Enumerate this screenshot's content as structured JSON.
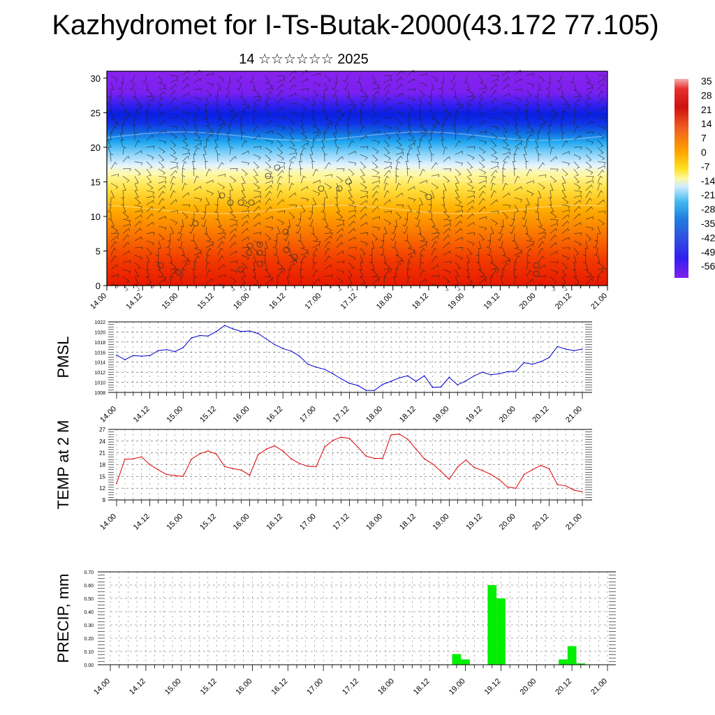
{
  "title": "Kazhydromet for I-Ts-Butak-2000(43.172 77.105)",
  "subtitle": "14 ☆☆☆☆☆☆ 2025",
  "colors": {
    "pmsl_line": "#0000cc",
    "temp_line": "#dd0000",
    "precip_bar": "#00ee00",
    "grid": "#555555",
    "frame": "#000000"
  },
  "chart_data": [
    {
      "type": "heatmap",
      "title": "",
      "x_tick_labels": [
        "14.00",
        "14.12",
        "15.00",
        "15.12",
        "16.00",
        "16.12",
        "17.00",
        "17.12",
        "18.00",
        "18.12",
        "19.00",
        "19.12",
        "20.00",
        "20.12",
        "21.00"
      ],
      "y_tick_labels": [
        "0",
        "5",
        "10",
        "15",
        "20",
        "25",
        "30"
      ],
      "ylim": [
        0,
        31
      ],
      "colorbar_labels": [
        "35",
        "28",
        "21",
        "14",
        "7",
        "0",
        "-7",
        "-14",
        "-21",
        "-28",
        "-35",
        "-42",
        "-49",
        "-56"
      ],
      "colorbar_range": [
        -63,
        42
      ],
      "overlay": "wind barbs"
    },
    {
      "type": "line",
      "ylabel": "PMSL",
      "ylim": [
        1008,
        1022
      ],
      "y_ticks": [
        1008,
        1010,
        1012,
        1014,
        1016,
        1018,
        1020,
        1022
      ],
      "x_tick_labels": [
        "14.00",
        "14.12",
        "15.00",
        "15.12",
        "16.00",
        "16.12",
        "17.00",
        "17.12",
        "18.00",
        "18.12",
        "19.00",
        "19.12",
        "20.00",
        "20.12",
        "21.00"
      ],
      "x_hours": [
        0,
        3,
        6,
        9,
        12,
        15,
        18,
        21,
        24,
        27,
        30,
        33,
        36,
        39,
        42,
        45,
        48,
        51,
        54,
        57,
        60,
        63,
        66,
        69,
        72,
        75,
        78,
        81,
        84,
        87,
        90,
        93,
        96,
        99,
        102,
        105,
        108,
        111,
        114,
        117,
        120,
        123,
        126,
        129,
        132,
        135,
        138,
        141,
        144,
        147,
        150,
        153,
        156,
        159,
        162,
        165,
        168
      ],
      "values": [
        1015.4,
        1014.5,
        1015.3,
        1015.2,
        1015.3,
        1016.3,
        1016.5,
        1016.1,
        1016.9,
        1018.8,
        1019.3,
        1019.2,
        1020.1,
        1021.3,
        1020.6,
        1020.1,
        1020.2,
        1019.7,
        1018.6,
        1017.5,
        1016.7,
        1016.2,
        1015.2,
        1013.6,
        1013.0,
        1012.6,
        1011.7,
        1010.7,
        1009.8,
        1009.4,
        1008.4,
        1008.4,
        1009.6,
        1010.2,
        1010.9,
        1011.3,
        1010.2,
        1011.3,
        1009.0,
        1009.1,
        1011.0,
        1009.5,
        1010.3,
        1011.3,
        1012.0,
        1011.5,
        1011.7,
        1012.1,
        1012.2,
        1013.9,
        1013.6,
        1014.1,
        1014.9,
        1017.1,
        1016.6,
        1016.3,
        1016.6
      ]
    },
    {
      "type": "line",
      "ylabel": "TEMP at 2 M",
      "ylim": [
        9,
        27
      ],
      "y_ticks": [
        9,
        12,
        15,
        18,
        21,
        24,
        27
      ],
      "x_tick_labels": [
        "14.00",
        "14.12",
        "15.00",
        "15.12",
        "16.00",
        "16.12",
        "17.00",
        "17.12",
        "18.00",
        "18.12",
        "19.00",
        "19.12",
        "20.00",
        "20.12",
        "21.00"
      ],
      "x_hours": [
        0,
        3,
        6,
        9,
        12,
        15,
        18,
        21,
        24,
        27,
        30,
        33,
        36,
        39,
        42,
        45,
        48,
        51,
        54,
        57,
        60,
        63,
        66,
        69,
        72,
        75,
        78,
        81,
        84,
        87,
        90,
        93,
        96,
        99,
        102,
        105,
        108,
        111,
        114,
        117,
        120,
        123,
        126,
        129,
        132,
        135,
        138,
        141,
        144,
        147,
        150,
        153,
        156,
        159,
        162,
        165,
        168
      ],
      "values": [
        13.2,
        19.4,
        19.5,
        20.0,
        18.0,
        16.7,
        15.5,
        15.2,
        15.0,
        19.4,
        20.8,
        21.5,
        20.7,
        17.5,
        17.0,
        16.6,
        15.3,
        20.5,
        22.0,
        22.8,
        21.5,
        19.5,
        18.3,
        17.6,
        17.5,
        22.5,
        24.2,
        25.0,
        24.7,
        22.5,
        20.2,
        19.6,
        19.6,
        25.6,
        25.8,
        24.5,
        22.0,
        19.5,
        18.2,
        16.3,
        14.3,
        17.4,
        19.2,
        17.3,
        16.5,
        15.5,
        14.2,
        12.3,
        12.0,
        15.5,
        16.7,
        17.8,
        17.0,
        12.9,
        12.6,
        11.5,
        11.1
      ]
    },
    {
      "type": "bar",
      "ylabel": "PRECIP, mm",
      "ylim": [
        0,
        0.7
      ],
      "y_tick_labels": [
        "0.00",
        "0.10",
        "0.20",
        "0.30",
        "0.40",
        "0.50",
        "0.60",
        "0.70"
      ],
      "x_tick_labels": [
        "14.00",
        "14.12",
        "15.00",
        "15.12",
        "16.00",
        "16.12",
        "17.00",
        "17.12",
        "18.00",
        "18.12",
        "19.00",
        "19.12",
        "20.00",
        "20.12",
        "21.00"
      ],
      "bars_hours": [
        117,
        120,
        129,
        132,
        153,
        156,
        159
      ],
      "values": [
        0.08,
        0.04,
        0.6,
        0.5,
        0.04,
        0.14,
        0.01
      ]
    }
  ]
}
